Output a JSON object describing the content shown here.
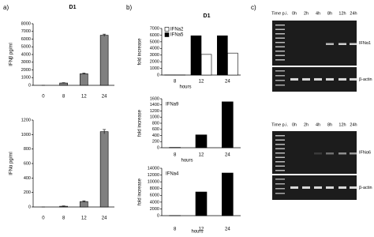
{
  "chart_data": [
    {
      "type": "bar",
      "panel": "a)",
      "title": "D1",
      "y_label": "IFNβ pg/ml",
      "categories": [
        "0",
        "8",
        "12",
        "24"
      ],
      "values": [
        0,
        300,
        1500,
        6500
      ],
      "errors": [
        0,
        40,
        80,
        150
      ],
      "color": "#808080",
      "ylim": [
        0,
        8000
      ],
      "yticks": [
        0,
        1000,
        2000,
        3000,
        4000,
        5000,
        6000,
        7000,
        8000
      ]
    },
    {
      "type": "bar",
      "y_label": "IFNα pg/ml",
      "categories": [
        "0",
        "8",
        "12",
        "24"
      ],
      "values": [
        0,
        10,
        75,
        1040
      ],
      "errors": [
        0,
        4,
        10,
        30
      ],
      "color": "#808080",
      "ylim": [
        0,
        1200
      ],
      "yticks": [
        0,
        200,
        400,
        600,
        800,
        1000,
        1200
      ]
    },
    {
      "type": "bar",
      "panel": "b)",
      "title": "D1",
      "y_label": "fold increase",
      "x_label": "hours",
      "categories": [
        "8",
        "12",
        "24"
      ],
      "series": [
        {
          "name": "IFNa2",
          "color": "#ffffff",
          "values": [
            20,
            3100,
            3300
          ]
        },
        {
          "name": "IFNa5",
          "color": "#000000",
          "values": [
            20,
            5900,
            5900
          ]
        }
      ],
      "ylim": [
        0,
        7000
      ],
      "yticks": [
        0,
        1000,
        2000,
        3000,
        4000,
        5000,
        6000,
        7000
      ]
    },
    {
      "type": "bar",
      "annotation": "IFNa9",
      "y_label": "fold increase",
      "x_label": "hours",
      "categories": [
        "8",
        "12",
        "24"
      ],
      "values": [
        10,
        420,
        1500
      ],
      "color": "#000000",
      "ylim": [
        0,
        1600
      ],
      "yticks": [
        0,
        200,
        400,
        600,
        800,
        1000,
        1200,
        1400,
        1600
      ]
    },
    {
      "type": "bar",
      "annotation": "IFNa4",
      "y_label": "fold increase",
      "x_label": "hours",
      "categories": [
        "8",
        "12",
        "24"
      ],
      "values": [
        50,
        7000,
        12600
      ],
      "color": "#000000",
      "ylim": [
        0,
        14000
      ],
      "yticks": [
        0,
        2000,
        4000,
        6000,
        8000,
        10000,
        12000,
        14000
      ]
    }
  ],
  "gel": {
    "panel": "c)",
    "blots": [
      {
        "time_label": "Time p.i.",
        "lanes": [
          "0h",
          "2h",
          "4h",
          "8h",
          "12h",
          "24h"
        ],
        "target": "IFNα1",
        "control": "β-actin"
      },
      {
        "time_label": "Time p.i.",
        "lanes": [
          "0h",
          "2h",
          "4h",
          "8h",
          "12h",
          "24h"
        ],
        "target": "IFNα6",
        "control": "β-actin"
      }
    ]
  }
}
